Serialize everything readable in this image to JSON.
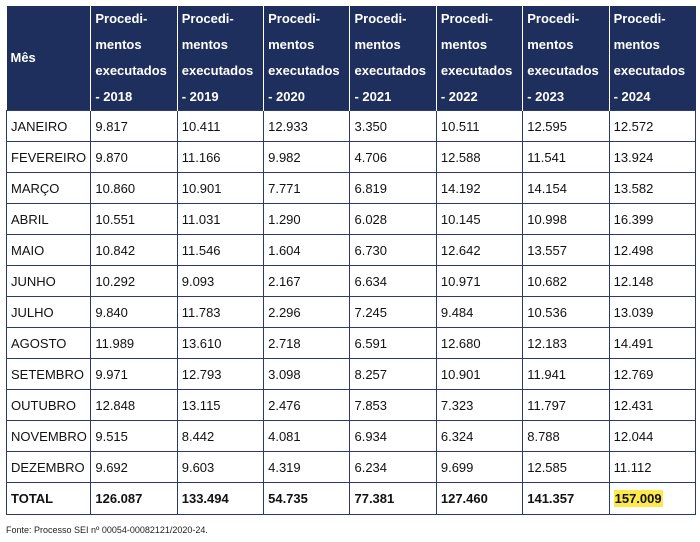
{
  "table": {
    "header": {
      "month": "Mês",
      "years": [
        [
          "Procedi-",
          "mentos",
          "executados",
          "- 2018"
        ],
        [
          "Procedi-",
          "mentos",
          "executados",
          "- 2019"
        ],
        [
          "Procedi-",
          "mentos",
          "executados",
          "- 2020"
        ],
        [
          "Procedi-",
          "mentos",
          "executados",
          "- 2021"
        ],
        [
          "Procedi-",
          "mentos",
          "executados",
          "- 2022"
        ],
        [
          "Procedi-",
          "mentos",
          "executados",
          "- 2023"
        ],
        [
          "Procedi-",
          "mentos",
          "executados",
          "- 2024"
        ]
      ]
    },
    "rows": [
      [
        "JANEIRO",
        "9.817",
        "10.411",
        "12.933",
        "3.350",
        "10.511",
        "12.595",
        "12.572"
      ],
      [
        "FEVEREIRO",
        "9.870",
        "11.166",
        "9.982",
        "4.706",
        "12.588",
        "11.541",
        "13.924"
      ],
      [
        "MARÇO",
        "10.860",
        "10.901",
        "7.771",
        "6.819",
        "14.192",
        "14.154",
        "13.582"
      ],
      [
        "ABRIL",
        "10.551",
        "11.031",
        "1.290",
        "6.028",
        "10.145",
        "10.998",
        "16.399"
      ],
      [
        "MAIO",
        "10.842",
        "11.546",
        "1.604",
        "6.730",
        "12.642",
        "13.557",
        "12.498"
      ],
      [
        "JUNHO",
        "10.292",
        "9.093",
        "2.167",
        "6.634",
        "10.971",
        "10.682",
        "12.148"
      ],
      [
        "JULHO",
        "9.840",
        "11.783",
        "2.296",
        "7.245",
        "9.484",
        "10.536",
        "13.039"
      ],
      [
        "AGOSTO",
        "11.989",
        "13.610",
        "2.718",
        "6.591",
        "12.680",
        "12.183",
        "14.491"
      ],
      [
        "SETEMBRO",
        "9.971",
        "12.793",
        "3.098",
        "8.257",
        "10.901",
        "11.941",
        "12.769"
      ],
      [
        "OUTUBRO",
        "12.848",
        "13.115",
        "2.476",
        "7.853",
        "7.323",
        "11.797",
        "12.431"
      ],
      [
        "NOVEMBRO",
        "9.515",
        "8.442",
        "4.081",
        "6.934",
        "6.324",
        "8.788",
        "12.044"
      ],
      [
        "DEZEMBRO",
        "9.692",
        "9.603",
        "4.319",
        "6.234",
        "9.699",
        "12.585",
        "11.112"
      ]
    ],
    "total": [
      "TOTAL",
      "126.087",
      "133.494",
      "54.735",
      "77.381",
      "127.460",
      "141.357",
      "157.009"
    ],
    "highlight_color": "#fde94a",
    "header_color": "#1f2f5d"
  },
  "source": "Fonte: Processo SEI nº 00054-00082121/2020-24."
}
